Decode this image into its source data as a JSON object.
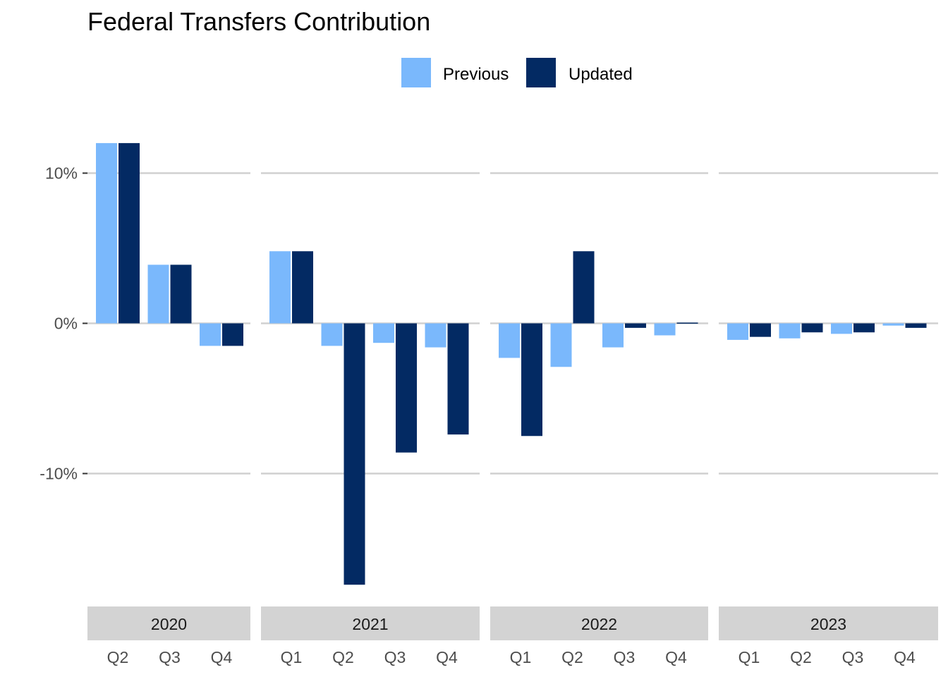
{
  "chart_data": {
    "type": "bar",
    "title": "Federal Transfers Contribution",
    "xlabel": "",
    "ylabel": "",
    "y_tick_labels": [
      "10%",
      "0%",
      "-10%"
    ],
    "y_ticks": [
      10,
      0,
      -10
    ],
    "ylim": [
      -18.5,
      13.5
    ],
    "grid": "horizontal major",
    "legend": {
      "placement": "top",
      "entries": [
        "Previous",
        "Updated"
      ]
    },
    "colors": {
      "Previous": "#7ab8fc",
      "Updated": "#032a63",
      "strip": "#d3d3d3",
      "grid": "#d0d0d0"
    },
    "series_names": [
      "Previous",
      "Updated"
    ],
    "panels": [
      {
        "year": "2020",
        "categories": [
          "Q2",
          "Q3",
          "Q4"
        ],
        "series": [
          {
            "name": "Previous",
            "values": [
              12.0,
              3.9,
              -1.5
            ]
          },
          {
            "name": "Updated",
            "values": [
              12.0,
              3.9,
              -1.5
            ]
          }
        ]
      },
      {
        "year": "2021",
        "categories": [
          "Q1",
          "Q2",
          "Q3",
          "Q4"
        ],
        "series": [
          {
            "name": "Previous",
            "values": [
              4.8,
              -1.5,
              -1.3,
              -1.6
            ]
          },
          {
            "name": "Updated",
            "values": [
              4.8,
              -17.4,
              -8.6,
              -7.4
            ]
          }
        ]
      },
      {
        "year": "2022",
        "categories": [
          "Q1",
          "Q2",
          "Q3",
          "Q4"
        ],
        "series": [
          {
            "name": "Previous",
            "values": [
              -2.3,
              -2.9,
              -1.6,
              -0.8
            ]
          },
          {
            "name": "Updated",
            "values": [
              -7.5,
              4.8,
              -0.3,
              0.05
            ]
          }
        ]
      },
      {
        "year": "2023",
        "categories": [
          "Q1",
          "Q2",
          "Q3",
          "Q4"
        ],
        "series": [
          {
            "name": "Previous",
            "values": [
              -1.1,
              -1.0,
              -0.7,
              -0.15
            ]
          },
          {
            "name": "Updated",
            "values": [
              -0.9,
              -0.6,
              -0.6,
              -0.3
            ]
          }
        ]
      }
    ]
  }
}
